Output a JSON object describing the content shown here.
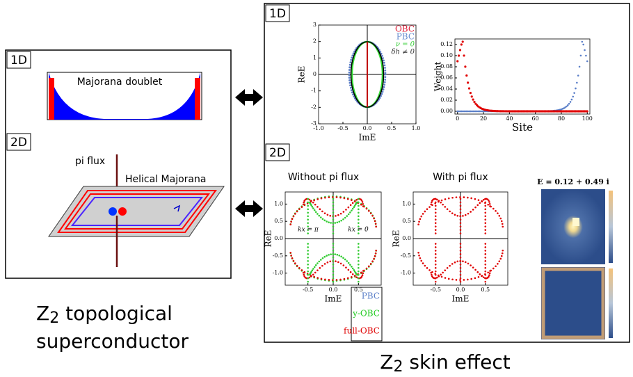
{
  "left_panel": {
    "tag_1d": "1D",
    "majorana_label": "Majorana doublet",
    "tag_2d": "2D",
    "pi_flux": "pi flux",
    "helical_label": "Helical Majorana"
  },
  "left_caption": {
    "line1_main": "Z",
    "line1_sub": "2",
    "line1_rest": " topological",
    "line2": "superconductor"
  },
  "right_panel": {
    "tag_1d": "1D",
    "tag_2d": "2D"
  },
  "right_caption": {
    "main": "Z",
    "sub": "2",
    "rest": " skin effect"
  },
  "spectrum_1d": {
    "xlabel": "ImE",
    "ylabel": "ReE",
    "xticks": [
      "-1.0",
      "-0.5",
      "0.0",
      "0.5",
      "1.0"
    ],
    "yticks": [
      "-3",
      "-2",
      "-1",
      "0",
      "1",
      "2",
      "3"
    ],
    "legend": [
      "OBC",
      "PBC",
      "ν = 0",
      "δh ≠ 0"
    ]
  },
  "weight_1d": {
    "xlabel": "Site",
    "ylabel": "Weight",
    "xticks": [
      "0",
      "20",
      "40",
      "60",
      "80",
      "100"
    ],
    "yticks": [
      "0.00",
      "0.02",
      "0.04",
      "0.06",
      "0.08",
      "0.10",
      "0.12"
    ]
  },
  "without_flux": {
    "title": "Without  pi flux",
    "xlabel": "ImE",
    "ylabel": "ReE",
    "xticks": [
      "-0.5",
      "0.0",
      "0.5"
    ],
    "yticks": [
      "-1.0",
      "-0.5",
      "0.0",
      "0.5",
      "1.0"
    ],
    "annotations": [
      "kx = π",
      "kx = 0"
    ],
    "legend": [
      "PBC",
      "y-OBC",
      "full-OBC"
    ]
  },
  "with_flux": {
    "title": "With pi flux",
    "xlabel": "ImE",
    "ylabel": "ReE",
    "xticks": [
      "-0.5",
      "0.0",
      "0.5"
    ],
    "yticks": [
      "-1.0",
      "-0.5",
      "0.0",
      "0.5",
      "1.0"
    ]
  },
  "heatmap": {
    "title": "E = 0.12 + 0.49 i"
  }
}
